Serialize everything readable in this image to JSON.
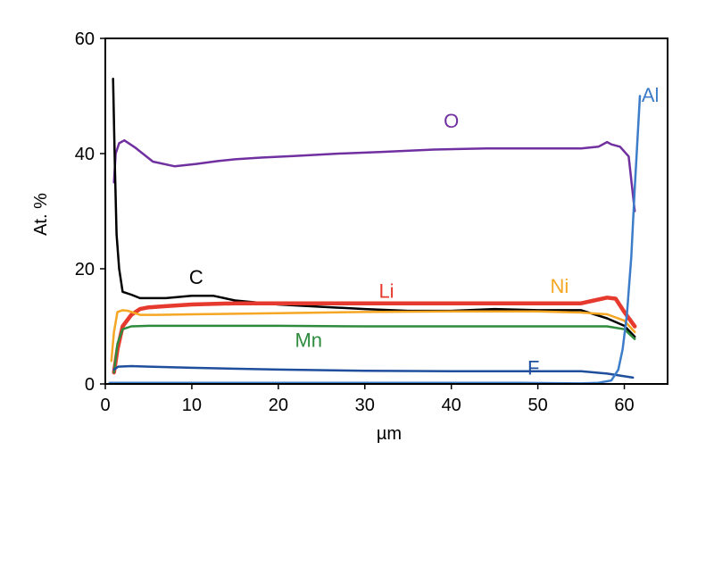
{
  "chart_data": {
    "type": "line",
    "title": "",
    "xlabel": "µm",
    "ylabel": "At. %",
    "xlim": [
      0,
      65
    ],
    "ylim": [
      0,
      60
    ],
    "x_ticks": [
      0,
      10,
      20,
      30,
      40,
      50,
      60
    ],
    "y_ticks": [
      0,
      20,
      40,
      60
    ],
    "y_tick_labels": [
      "0",
      "20",
      "40",
      "60"
    ],
    "grid": false,
    "series": [
      {
        "name": "O",
        "color": "#7030a0",
        "label_at": [
          40,
          44.5
        ],
        "x": [
          1.0,
          1.2,
          1.6,
          2.2,
          3.5,
          5.5,
          8.0,
          10.5,
          13.0,
          15.0,
          18.0,
          22.0,
          27.0,
          32.0,
          38.0,
          44.0,
          50.0,
          55.0,
          57.0,
          58.0,
          58.5,
          59.5,
          60.5,
          61.2
        ],
        "y": [
          35.0,
          40.0,
          41.8,
          42.3,
          41.0,
          38.6,
          37.8,
          38.2,
          38.7,
          39.0,
          39.3,
          39.6,
          40.0,
          40.3,
          40.7,
          40.9,
          40.9,
          40.9,
          41.2,
          42.0,
          41.6,
          41.2,
          39.5,
          30.0
        ]
      },
      {
        "name": "C",
        "color": "#000000",
        "label_at": [
          10.5,
          17.4
        ],
        "x": [
          0.9,
          1.1,
          1.3,
          1.6,
          2.0,
          3.0,
          4.0,
          7.0,
          10.0,
          12.5,
          15.0,
          20.0,
          25.0,
          30.0,
          35.0,
          40.0,
          45.0,
          50.0,
          55.0,
          58.0,
          60.0,
          61.2
        ],
        "y": [
          53.0,
          38.0,
          26.0,
          20.0,
          16.0,
          15.5,
          14.9,
          14.9,
          15.3,
          15.3,
          14.5,
          13.8,
          13.4,
          13.0,
          12.7,
          12.7,
          13.0,
          12.8,
          12.8,
          11.4,
          10.1,
          8.2
        ]
      },
      {
        "name": "Li",
        "color": "#e63a2e",
        "label_at": [
          32.5,
          15.0
        ],
        "x": [
          1.0,
          1.4,
          2.0,
          3.0,
          4.0,
          5.0,
          7.0,
          10.0,
          15.0,
          20.0,
          30.0,
          40.0,
          50.0,
          55.0,
          56.5,
          58.0,
          59.0,
          60.0,
          61.2
        ],
        "y": [
          2.0,
          6.0,
          10.0,
          12.0,
          13.0,
          13.3,
          13.5,
          13.8,
          14.0,
          14.0,
          14.0,
          14.0,
          14.0,
          14.0,
          14.5,
          15.0,
          14.8,
          12.5,
          10.0
        ]
      },
      {
        "name": "Ni",
        "color": "#f5a623",
        "label_at": [
          52.5,
          15.8
        ],
        "x": [
          0.7,
          1.0,
          1.4,
          2.0,
          2.6,
          3.2,
          4.0,
          6.0,
          10.0,
          20.0,
          30.0,
          40.0,
          50.0,
          55.0,
          58.0,
          60.0,
          61.2
        ],
        "y": [
          4.0,
          9.0,
          12.5,
          12.8,
          12.7,
          12.4,
          12.0,
          12.0,
          12.1,
          12.3,
          12.5,
          12.6,
          12.6,
          12.4,
          12.1,
          11.0,
          9.0
        ]
      },
      {
        "name": "Mn",
        "color": "#2e8b3e",
        "label_at": [
          23.5,
          6.4
        ],
        "x": [
          1.0,
          1.4,
          2.0,
          3.0,
          5.0,
          10.0,
          20.0,
          30.0,
          40.0,
          50.0,
          55.0,
          58.0,
          60.0,
          61.2
        ],
        "y": [
          2.0,
          7.0,
          9.5,
          10.0,
          10.1,
          10.1,
          10.1,
          10.0,
          10.0,
          10.0,
          10.0,
          10.0,
          9.5,
          7.8
        ]
      },
      {
        "name": "F",
        "color": "#1f4e9c",
        "label_at": [
          49.5,
          1.6
        ],
        "x": [
          1.0,
          1.5,
          3.0,
          5.0,
          10.0,
          20.0,
          30.0,
          40.0,
          50.0,
          55.0,
          58.0,
          61.0
        ],
        "y": [
          2.5,
          3.0,
          3.1,
          3.0,
          2.8,
          2.5,
          2.3,
          2.2,
          2.2,
          2.2,
          1.8,
          1.1
        ]
      },
      {
        "name": "Al",
        "color": "#3d7cc9",
        "label_at": [
          63.0,
          49.0
        ],
        "x": [
          0.5,
          10.0,
          20.0,
          30.0,
          40.0,
          48.0,
          55.0,
          57.0,
          58.5,
          59.3,
          59.8,
          60.3,
          60.8,
          61.2,
          61.5,
          61.8
        ],
        "y": [
          0.2,
          0.2,
          0.2,
          0.2,
          0.2,
          0.2,
          0.1,
          0.2,
          0.6,
          2.5,
          6.0,
          12.0,
          22.0,
          34.0,
          42.0,
          50.0
        ]
      }
    ]
  }
}
